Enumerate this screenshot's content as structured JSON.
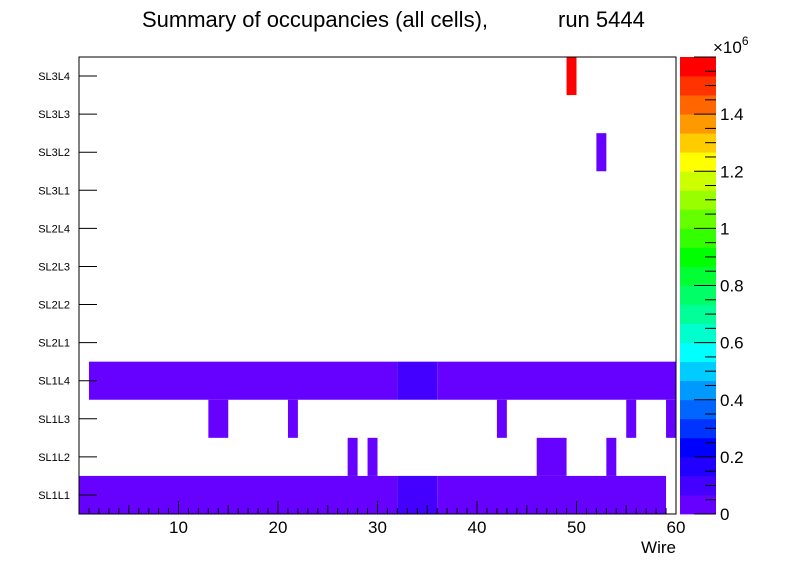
{
  "chart_data": {
    "type": "heatmap",
    "title": "Summary of occupancies (all cells),",
    "subtitle": "run 5444",
    "xlabel": "Wire",
    "ylabel": "",
    "xlim": [
      0,
      60
    ],
    "x_ticks": [
      "10",
      "20",
      "30",
      "40",
      "50",
      "60"
    ],
    "x_tick_values": [
      10,
      20,
      30,
      40,
      50,
      60
    ],
    "y_categories": [
      "SL1L1",
      "SL1L2",
      "SL1L3",
      "SL1L4",
      "SL2L1",
      "SL2L2",
      "SL2L3",
      "SL2L4",
      "SL3L1",
      "SL3L2",
      "SL3L3",
      "SL3L4"
    ],
    "zlim": [
      0,
      1600000
    ],
    "z_exponent_label": "×10",
    "z_exponent_power": "6",
    "z_ticks": [
      "0",
      "0.2",
      "0.4",
      "0.6",
      "0.8",
      "1",
      "1.2",
      "1.4"
    ],
    "z_tick_values": [
      0,
      0.2,
      0.4,
      0.6,
      0.8,
      1.0,
      1.2,
      1.4
    ],
    "palette": [
      "#6600ff",
      "#4400ff",
      "#2200ff",
      "#0000ff",
      "#0033ff",
      "#0066ff",
      "#0099ff",
      "#00ccff",
      "#00ffff",
      "#00ffcc",
      "#00ff99",
      "#00ff66",
      "#00ff33",
      "#00ff00",
      "#33ff00",
      "#66ff00",
      "#99ff00",
      "#ccff00",
      "#ffff00",
      "#ffcc00",
      "#ff9900",
      "#ff6600",
      "#ff3300",
      "#ff0000"
    ],
    "cells": [
      {
        "layer": "SL1L1",
        "wire_start": 1,
        "wire_end": 32,
        "value": 50000
      },
      {
        "layer": "SL1L1",
        "wire_start": 33,
        "wire_end": 36,
        "value": 120000
      },
      {
        "layer": "SL1L1",
        "wire_start": 37,
        "wire_end": 59,
        "value": 50000
      },
      {
        "layer": "SL1L2",
        "wire_start": 28,
        "wire_end": 28,
        "value": 50000
      },
      {
        "layer": "SL1L2",
        "wire_start": 30,
        "wire_end": 30,
        "value": 50000
      },
      {
        "layer": "SL1L2",
        "wire_start": 47,
        "wire_end": 49,
        "value": 50000
      },
      {
        "layer": "SL1L2",
        "wire_start": 54,
        "wire_end": 54,
        "value": 50000
      },
      {
        "layer": "SL1L3",
        "wire_start": 14,
        "wire_end": 15,
        "value": 50000
      },
      {
        "layer": "SL1L3",
        "wire_start": 22,
        "wire_end": 22,
        "value": 50000
      },
      {
        "layer": "SL1L3",
        "wire_start": 43,
        "wire_end": 43,
        "value": 50000
      },
      {
        "layer": "SL1L3",
        "wire_start": 56,
        "wire_end": 56,
        "value": 50000
      },
      {
        "layer": "SL1L3",
        "wire_start": 60,
        "wire_end": 60,
        "value": 50000
      },
      {
        "layer": "SL1L4",
        "wire_start": 2,
        "wire_end": 32,
        "value": 50000
      },
      {
        "layer": "SL1L4",
        "wire_start": 33,
        "wire_end": 36,
        "value": 120000
      },
      {
        "layer": "SL1L4",
        "wire_start": 37,
        "wire_end": 60,
        "value": 50000
      },
      {
        "layer": "SL3L2",
        "wire_start": 53,
        "wire_end": 53,
        "value": 50000
      },
      {
        "layer": "SL3L4",
        "wire_start": 50,
        "wire_end": 50,
        "value": 1580000
      }
    ]
  }
}
